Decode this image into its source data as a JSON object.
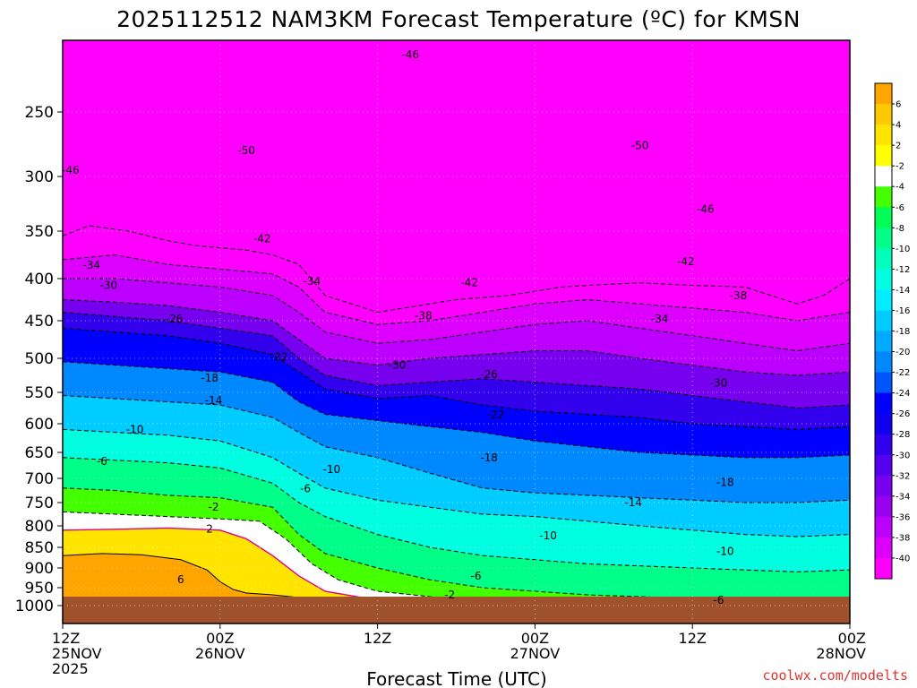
{
  "chart_data": {
    "type": "heatmap",
    "title": "2025112512 NAM3KM Forecast Temperature (ºC) for KMSN",
    "xlabel": "Forecast Time (UTC)",
    "ylabel": "",
    "credit": "coolwx.com/modelts",
    "y_axis": {
      "scale": "pressure (inverted, log-like)",
      "range_hpa": [
        200,
        1050
      ],
      "ticks": [
        "250",
        "300",
        "350",
        "400",
        "450",
        "500",
        "550",
        "600",
        "650",
        "700",
        "750",
        "800",
        "850",
        "900",
        "950",
        "1000"
      ]
    },
    "x_axis": {
      "range_hours": [
        0,
        60
      ],
      "ticks": [
        {
          "hour": 0,
          "line1": "12Z",
          "line2": "25NOV",
          "line3": "2025"
        },
        {
          "hour": 12,
          "line1": "00Z",
          "line2": "26NOV",
          "line3": ""
        },
        {
          "hour": 24,
          "line1": "12Z",
          "line2": "",
          "line3": ""
        },
        {
          "hour": 36,
          "line1": "00Z",
          "line2": "27NOV",
          "line3": ""
        },
        {
          "hour": 48,
          "line1": "12Z",
          "line2": "",
          "line3": ""
        },
        {
          "hour": 60,
          "line1": "00Z",
          "line2": "28NOV",
          "line3": ""
        }
      ]
    },
    "colorbar": {
      "labels": [
        "6",
        "4",
        "2",
        "-2",
        "-4",
        "-6",
        "-8",
        "-10",
        "-12",
        "-14",
        "-16",
        "-18",
        "-20",
        "-22",
        "-24",
        "-26",
        "-28",
        "-30",
        "-32",
        "-34",
        "-36",
        "-38",
        "-40"
      ],
      "colors": [
        "#ffa500",
        "#ffc800",
        "#ffe400",
        "#ffff00",
        "#ffffff",
        "#44ff00",
        "#00ff55",
        "#00ff88",
        "#00ffbb",
        "#00ffe0",
        "#00eeff",
        "#00ccff",
        "#00aaff",
        "#0088ff",
        "#0055ff",
        "#0000ff",
        "#1100ee",
        "#3300ee",
        "#5500ee",
        "#7700ee",
        "#9900ee",
        "#bb00ff",
        "#dd00ff",
        "#ff00ff"
      ]
    },
    "temperature_bands": [
      {
        "t": -44,
        "color": "#ff00ff",
        "top": [
          [
            0,
            200
          ],
          [
            60,
            200
          ]
        ],
        "bottom": [
          [
            0,
            355
          ],
          [
            2,
            345
          ],
          [
            5,
            350
          ],
          [
            8,
            360
          ],
          [
            10,
            365
          ],
          [
            14,
            370
          ],
          [
            16,
            375
          ],
          [
            18,
            385
          ],
          [
            20,
            420
          ],
          [
            22,
            430
          ],
          [
            24,
            440
          ],
          [
            26,
            435
          ],
          [
            30,
            425
          ],
          [
            34,
            420
          ],
          [
            36,
            415
          ],
          [
            38,
            410
          ],
          [
            40,
            408
          ],
          [
            44,
            405
          ],
          [
            48,
            408
          ],
          [
            52,
            410
          ],
          [
            56,
            430
          ],
          [
            58,
            420
          ],
          [
            60,
            400
          ]
        ]
      },
      {
        "t": -40,
        "color": "#dd00ff",
        "bottom": [
          [
            0,
            380
          ],
          [
            4,
            375
          ],
          [
            8,
            385
          ],
          [
            12,
            390
          ],
          [
            16,
            395
          ],
          [
            18,
            410
          ],
          [
            20,
            440
          ],
          [
            24,
            455
          ],
          [
            28,
            450
          ],
          [
            32,
            440
          ],
          [
            36,
            430
          ],
          [
            40,
            425
          ],
          [
            44,
            430
          ],
          [
            48,
            435
          ],
          [
            52,
            440
          ],
          [
            56,
            450
          ],
          [
            60,
            440
          ]
        ]
      },
      {
        "t": -36,
        "color": "#bb00ff",
        "bottom": [
          [
            0,
            400
          ],
          [
            4,
            400
          ],
          [
            8,
            405
          ],
          [
            12,
            410
          ],
          [
            16,
            420
          ],
          [
            18,
            440
          ],
          [
            20,
            465
          ],
          [
            24,
            480
          ],
          [
            28,
            475
          ],
          [
            32,
            465
          ],
          [
            36,
            455
          ],
          [
            40,
            450
          ],
          [
            44,
            460
          ],
          [
            48,
            470
          ],
          [
            52,
            480
          ],
          [
            56,
            490
          ],
          [
            60,
            480
          ]
        ]
      },
      {
        "t": -32,
        "color": "#7700ee",
        "bottom": [
          [
            0,
            425
          ],
          [
            4,
            428
          ],
          [
            8,
            432
          ],
          [
            12,
            440
          ],
          [
            16,
            450
          ],
          [
            18,
            475
          ],
          [
            20,
            500
          ],
          [
            24,
            510
          ],
          [
            28,
            500
          ],
          [
            32,
            495
          ],
          [
            36,
            490
          ],
          [
            40,
            490
          ],
          [
            44,
            500
          ],
          [
            48,
            510
          ],
          [
            52,
            520
          ],
          [
            56,
            525
          ],
          [
            60,
            520
          ]
        ]
      },
      {
        "t": -28,
        "color": "#3300ee",
        "bottom": [
          [
            0,
            440
          ],
          [
            4,
            445
          ],
          [
            8,
            450
          ],
          [
            12,
            460
          ],
          [
            16,
            470
          ],
          [
            18,
            500
          ],
          [
            20,
            525
          ],
          [
            24,
            540
          ],
          [
            28,
            535
          ],
          [
            32,
            530
          ],
          [
            36,
            535
          ],
          [
            40,
            540
          ],
          [
            44,
            545
          ],
          [
            48,
            555
          ],
          [
            52,
            565
          ],
          [
            56,
            575
          ],
          [
            60,
            570
          ]
        ]
      },
      {
        "t": -24,
        "color": "#0000ff",
        "bottom": [
          [
            0,
            460
          ],
          [
            4,
            465
          ],
          [
            8,
            470
          ],
          [
            12,
            480
          ],
          [
            16,
            495
          ],
          [
            18,
            520
          ],
          [
            20,
            545
          ],
          [
            24,
            560
          ],
          [
            28,
            555
          ],
          [
            32,
            570
          ],
          [
            36,
            580
          ],
          [
            40,
            585
          ],
          [
            44,
            590
          ],
          [
            48,
            600
          ],
          [
            52,
            605
          ],
          [
            56,
            610
          ],
          [
            60,
            605
          ]
        ]
      },
      {
        "t": -20,
        "color": "#0088ff",
        "bottom": [
          [
            0,
            505
          ],
          [
            4,
            510
          ],
          [
            8,
            515
          ],
          [
            12,
            520
          ],
          [
            16,
            535
          ],
          [
            18,
            565
          ],
          [
            20,
            585
          ],
          [
            24,
            595
          ],
          [
            28,
            605
          ],
          [
            32,
            615
          ],
          [
            36,
            630
          ],
          [
            40,
            640
          ],
          [
            44,
            650
          ],
          [
            48,
            655
          ],
          [
            52,
            660
          ],
          [
            56,
            660
          ],
          [
            60,
            655
          ]
        ]
      },
      {
        "t": -16,
        "color": "#00ccff",
        "bottom": [
          [
            0,
            555
          ],
          [
            4,
            560
          ],
          [
            8,
            565
          ],
          [
            12,
            570
          ],
          [
            16,
            590
          ],
          [
            18,
            615
          ],
          [
            20,
            640
          ],
          [
            24,
            660
          ],
          [
            28,
            690
          ],
          [
            32,
            720
          ],
          [
            36,
            730
          ],
          [
            40,
            735
          ],
          [
            44,
            740
          ],
          [
            48,
            745
          ],
          [
            52,
            750
          ],
          [
            56,
            750
          ],
          [
            60,
            745
          ]
        ]
      },
      {
        "t": -12,
        "color": "#00ffe0",
        "bottom": [
          [
            0,
            610
          ],
          [
            4,
            615
          ],
          [
            8,
            620
          ],
          [
            12,
            630
          ],
          [
            16,
            660
          ],
          [
            18,
            690
          ],
          [
            20,
            720
          ],
          [
            24,
            745
          ],
          [
            28,
            760
          ],
          [
            32,
            775
          ],
          [
            36,
            780
          ],
          [
            40,
            790
          ],
          [
            44,
            800
          ],
          [
            48,
            810
          ],
          [
            52,
            820
          ],
          [
            56,
            825
          ],
          [
            60,
            820
          ]
        ]
      },
      {
        "t": -8,
        "color": "#00ff88",
        "bottom": [
          [
            0,
            660
          ],
          [
            4,
            665
          ],
          [
            8,
            670
          ],
          [
            12,
            680
          ],
          [
            16,
            710
          ],
          [
            18,
            750
          ],
          [
            20,
            780
          ],
          [
            24,
            820
          ],
          [
            28,
            850
          ],
          [
            32,
            870
          ],
          [
            36,
            880
          ],
          [
            40,
            890
          ],
          [
            44,
            895
          ],
          [
            48,
            900
          ],
          [
            52,
            905
          ],
          [
            56,
            910
          ],
          [
            60,
            905
          ]
        ]
      },
      {
        "t": -4,
        "color": "#44ff00",
        "bottom": [
          [
            0,
            720
          ],
          [
            4,
            725
          ],
          [
            8,
            735
          ],
          [
            12,
            740
          ],
          [
            16,
            760
          ],
          [
            18,
            820
          ],
          [
            20,
            865
          ],
          [
            24,
            900
          ],
          [
            28,
            930
          ],
          [
            32,
            950
          ],
          [
            36,
            960
          ],
          [
            40,
            970
          ],
          [
            44,
            975
          ],
          [
            48,
            980
          ],
          [
            52,
            985
          ],
          [
            56,
            990
          ],
          [
            60,
            990
          ]
        ]
      },
      {
        "t": -2,
        "color": "#ffffff",
        "bottom": [
          [
            0,
            770
          ],
          [
            4,
            775
          ],
          [
            8,
            780
          ],
          [
            12,
            785
          ],
          [
            15,
            790
          ],
          [
            17,
            830
          ],
          [
            19,
            890
          ],
          [
            21,
            930
          ],
          [
            24,
            960
          ],
          [
            28,
            975
          ],
          [
            32,
            985
          ],
          [
            36,
            995
          ],
          [
            40,
            1005
          ],
          [
            48,
            1010
          ],
          [
            60,
            1015
          ]
        ]
      },
      {
        "t": 2,
        "color": "#ffe400",
        "bottom": [
          [
            0,
            810
          ],
          [
            4,
            808
          ],
          [
            8,
            805
          ],
          [
            12,
            810
          ],
          [
            14,
            830
          ],
          [
            16,
            870
          ],
          [
            18,
            920
          ],
          [
            20,
            960
          ],
          [
            24,
            985
          ],
          [
            28,
            1000
          ],
          [
            36,
            1010
          ],
          [
            60,
            1020
          ]
        ]
      },
      {
        "t": 6,
        "color": "#ffa500",
        "bottom": [
          [
            0,
            870
          ],
          [
            3,
            865
          ],
          [
            6,
            868
          ],
          [
            9,
            880
          ],
          [
            11,
            905
          ],
          [
            12,
            935
          ],
          [
            13,
            955
          ],
          [
            14,
            965
          ],
          [
            16,
            970
          ],
          [
            20,
            985
          ],
          [
            60,
            1020
          ]
        ]
      }
    ],
    "ground": {
      "color": "#a0522d",
      "top_hpa": 975
    },
    "contour_labels": [
      {
        "text": "-46",
        "x": 0.6,
        "y": 295
      },
      {
        "text": "-50",
        "x": 14,
        "y": 280
      },
      {
        "text": "-46",
        "x": 26.5,
        "y": 210
      },
      {
        "text": "-50",
        "x": 44,
        "y": 276
      },
      {
        "text": "-46",
        "x": 49,
        "y": 330
      },
      {
        "text": "-42",
        "x": 15.2,
        "y": 358
      },
      {
        "text": "-42",
        "x": 31,
        "y": 405
      },
      {
        "text": "-42",
        "x": 47.5,
        "y": 382
      },
      {
        "text": "-34",
        "x": 2.2,
        "y": 386
      },
      {
        "text": "-34",
        "x": 19,
        "y": 403
      },
      {
        "text": "-34",
        "x": 45.5,
        "y": 448
      },
      {
        "text": "-38",
        "x": 27.5,
        "y": 444
      },
      {
        "text": "-38",
        "x": 51.5,
        "y": 420
      },
      {
        "text": "-30",
        "x": 3.5,
        "y": 408
      },
      {
        "text": "-30",
        "x": 25.5,
        "y": 510
      },
      {
        "text": "-30",
        "x": 50,
        "y": 536
      },
      {
        "text": "-26",
        "x": 8.5,
        "y": 448
      },
      {
        "text": "-26",
        "x": 32.5,
        "y": 524
      },
      {
        "text": "-22",
        "x": 16.5,
        "y": 498
      },
      {
        "text": "-22",
        "x": 33,
        "y": 586
      },
      {
        "text": "-18",
        "x": 11.2,
        "y": 529
      },
      {
        "text": "-18",
        "x": 32.5,
        "y": 660
      },
      {
        "text": "-18",
        "x": 50.5,
        "y": 708
      },
      {
        "text": "-14",
        "x": 11.5,
        "y": 563
      },
      {
        "text": "-14",
        "x": 43.5,
        "y": 750
      },
      {
        "text": "-10",
        "x": 5.5,
        "y": 610
      },
      {
        "text": "-10",
        "x": 20.5,
        "y": 683
      },
      {
        "text": "-10",
        "x": 37,
        "y": 823
      },
      {
        "text": "-10",
        "x": 50.5,
        "y": 860
      },
      {
        "text": "-6",
        "x": 3,
        "y": 667
      },
      {
        "text": "-6",
        "x": 18.5,
        "y": 721
      },
      {
        "text": "-6",
        "x": 31.5,
        "y": 920
      },
      {
        "text": "-6",
        "x": 50,
        "y": 985
      },
      {
        "text": "-2",
        "x": 11.5,
        "y": 760
      },
      {
        "text": "-2",
        "x": 29.5,
        "y": 970
      },
      {
        "text": "2",
        "x": 11.2,
        "y": 807
      },
      {
        "text": "6",
        "x": 9,
        "y": 930
      }
    ]
  }
}
